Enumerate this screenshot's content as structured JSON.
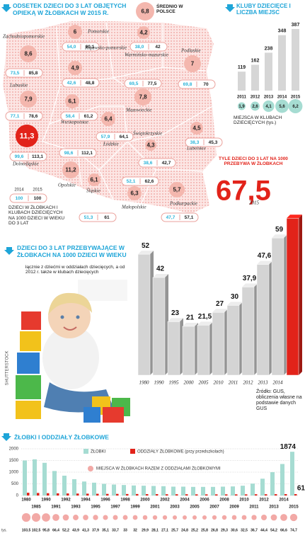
{
  "map": {
    "title": "ODSETEK DZIECI DO 3 LAT OBJĘTYCH OPIEKĄ W ŻŁOBKACH W 2015 R.",
    "bubble_color": "#f4b7ae",
    "average": {
      "value": "6,8",
      "label": "ŚREDNIO W POLSCE"
    },
    "regions": [
      {
        "name": "Pomorskie",
        "share": "6",
        "y2014": "54,0",
        "y2015": "60,1"
      },
      {
        "name": "Zachodniopomorskie",
        "share": "8,6",
        "y2014": "73,5",
        "y2015": "85,8"
      },
      {
        "name": "Warmińsko-mazurskie",
        "share": "4,2",
        "y2014": "38,0",
        "y2015": "42"
      },
      {
        "name": "Kujawsko-pomorskie",
        "share": "4,9",
        "y2014": "42,6",
        "y2015": "48,8"
      },
      {
        "name": "Podlaskie",
        "share": "7",
        "y2014": "69,8",
        "y2015": "70"
      },
      {
        "name": "Lubuskie",
        "share": "7,9",
        "y2014": "77,1",
        "y2015": "78,6"
      },
      {
        "name": "Mazowieckie",
        "share": "7,8",
        "y2014": "69,5",
        "y2015": "77,5"
      },
      {
        "name": "Wielkopolskie",
        "share": "6,1",
        "y2014": "58,4",
        "y2015": "61,2"
      },
      {
        "name": "Łódzkie",
        "share": "6,4",
        "y2014": "57,9",
        "y2015": "64,1"
      },
      {
        "name": "Świętokrzyskie",
        "share": "4,3",
        "y2014": "38,6",
        "y2015": "42,7"
      },
      {
        "name": "Lubelskie",
        "share": "4,5",
        "y2014": "38,3",
        "y2015": "45,3"
      },
      {
        "name": "Dolnośląskie",
        "share": "11,3",
        "y2014": "99,6",
        "y2015": "113,1",
        "color": "#e2231a"
      },
      {
        "name": "Opolskie",
        "share": "11,2",
        "y2014": "98,6",
        "y2015": "112,1"
      },
      {
        "name": "Śląskie",
        "share": "6,1",
        "y2014": "51,3",
        "y2015": "61"
      },
      {
        "name": "Małopolskie",
        "share": "6,3",
        "y2014": "52,1",
        "y2015": "62,6"
      },
      {
        "name": "Podkarpackie",
        "share": "5,7",
        "y2014": "47,7",
        "y2015": "57,1"
      }
    ],
    "legend": {
      "years": [
        "2014",
        "2015"
      ],
      "values": [
        "100",
        "100"
      ],
      "text": "DZIECI W ŻŁOBKACH I KLUBACH DZIECIĘCYCH NA 1000 DZIECI W WIEKU DO 3 LAT"
    }
  },
  "chart_data": [
    {
      "type": "bar",
      "title": "KLUBY DZIECIĘCE I LICZBA MIEJSC",
      "categories": [
        "2011",
        "2012",
        "2013",
        "2014",
        "2015"
      ],
      "values": [
        119,
        162,
        238,
        348,
        387
      ],
      "color": "#d6d6d6",
      "ylim": [
        0,
        400
      ],
      "places": {
        "name": "MIEJSCA W KLUBACH DZIECIĘCYCH (tys.)",
        "values": [
          1.9,
          2.6,
          4.1,
          5.6,
          6.2
        ],
        "value_labels": [
          "1,9",
          "2,6",
          "4,1",
          "5,6",
          "6,2"
        ],
        "color": "#a6dcd2"
      }
    },
    {
      "type": "bar3d",
      "title": "DZIECI DO 3 LAT PRZEBYWAJĄCE W ŻŁOBKACH NA 1000 DZIECI W WIEKU",
      "subtitle": "łącznie z dziećmi w oddziałach dziecięcych, a od 2012 r. także w klubach dziecięcych",
      "categories": [
        "1980",
        "1990",
        "1995",
        "2000",
        "2005",
        "2010",
        "2011",
        "2012",
        "2013",
        "2014",
        "2015"
      ],
      "values": [
        52,
        42,
        23,
        21,
        21.5,
        27,
        30,
        37.9,
        47.6,
        59,
        67.5
      ],
      "value_labels": [
        "52",
        "42",
        "23",
        "21",
        "21,5",
        "27",
        "30",
        "37,9",
        "47,6",
        "59",
        "67,5"
      ],
      "colors": [
        "#d4d4d4",
        "#d4d4d4",
        "#d4d4d4",
        "#d4d4d4",
        "#d4d4d4",
        "#d4d4d4",
        "#d4d4d4",
        "#d4d4d4",
        "#d4d4d4",
        "#d4d4d4",
        "#e2231a"
      ],
      "ylim": [
        0,
        70
      ],
      "annotation": "TYLE DZIECI DO 3 LAT NA 1000 PRZEBYWA W ŻŁOBKACH",
      "source": "Źródło: GUS, obliczenia własne na podstawie danych GUS"
    },
    {
      "type": "bar",
      "title": "ŻŁOBKI I ODDZIAŁY ŻŁOBKOWE",
      "categories": [
        "1980",
        "1985",
        "1990",
        "1991",
        "1992",
        "1993",
        "1994",
        "1995",
        "1996",
        "1997",
        "1998",
        "1999",
        "2000",
        "2001",
        "2002",
        "2003",
        "2004",
        "2005",
        "2006",
        "2007",
        "2008",
        "2009",
        "2010",
        "2011",
        "2012",
        "2013",
        "2014",
        "2015"
      ],
      "series": [
        {
          "name": "ŻŁOBKI",
          "color": "#a6dcd2",
          "values": [
            1500,
            1550,
            1400,
            1050,
            850,
            700,
            600,
            550,
            500,
            470,
            450,
            430,
            420,
            410,
            400,
            380,
            380,
            370,
            370,
            370,
            380,
            390,
            420,
            510,
            720,
            1000,
            1350,
            1874
          ]
        },
        {
          "name": "ODDZIAŁY ŻŁOBKOWE (przy przedszkolach)",
          "color": "#e2231a",
          "values": [
            120,
            110,
            100,
            95,
            90,
            85,
            80,
            75,
            70,
            70,
            65,
            65,
            60,
            60,
            55,
            55,
            55,
            50,
            50,
            50,
            50,
            50,
            50,
            55,
            55,
            58,
            60,
            61
          ]
        }
      ],
      "ylim": [
        0,
        2000
      ],
      "yticks": [
        0,
        500,
        1000,
        1500,
        2000
      ],
      "grid": true,
      "places": {
        "name": "MIEJSCA W ŻŁOBKACH RAZEM Z ODDZIAŁAMI ŻŁOBKOWYMI",
        "unit": "tys.",
        "color": "#f2a9a6",
        "values": [
          103.5,
          102.5,
          95.8,
          66.4,
          52.2,
          43.9,
          41.3,
          37.9,
          35.1,
          33.7,
          33,
          32,
          29.9,
          28.1,
          27.1,
          25.7,
          24.8,
          25.2,
          25.8,
          26.8,
          29.3,
          30.6,
          32.5,
          36.7,
          44.4,
          54.2,
          66.6,
          74.7
        ],
        "value_labels": [
          "103,5",
          "102,5",
          "95,8",
          "66,4",
          "52,2",
          "43,9",
          "41,3",
          "37,9",
          "35,1",
          "33,7",
          "33",
          "32",
          "29,9",
          "28,1",
          "27,1",
          "25,7",
          "24,8",
          "25,2",
          "25,8",
          "26,8",
          "29,3",
          "30,6",
          "32,5",
          "36,7",
          "44,4",
          "54,2",
          "66,6",
          "74,7"
        ]
      }
    }
  ],
  "photo_credit": "SHUTTERSTOCK"
}
